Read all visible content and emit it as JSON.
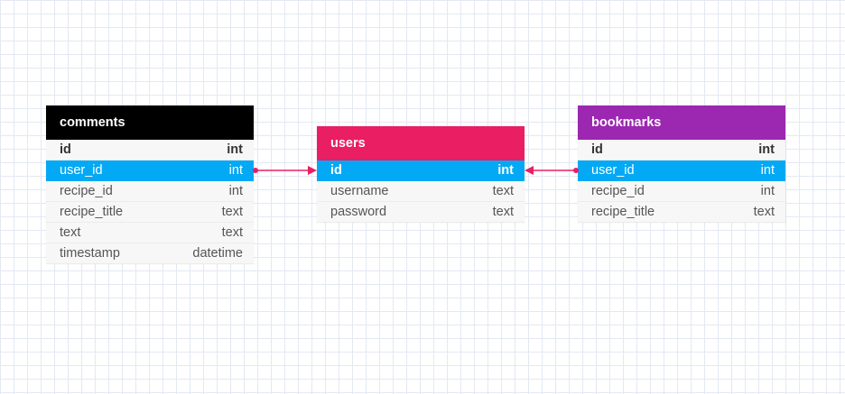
{
  "colors": {
    "comments_header": "#000000",
    "users_header": "#e91e63",
    "bookmarks_header": "#9c27b0",
    "highlight_row": "#03a9f4",
    "relation_line": "#e91e63"
  },
  "tables": {
    "comments": {
      "name": "comments",
      "rows": [
        {
          "field": "id",
          "type": "int"
        },
        {
          "field": "user_id",
          "type": "int"
        },
        {
          "field": "recipe_id",
          "type": "int"
        },
        {
          "field": "recipe_title",
          "type": "text"
        },
        {
          "field": "text",
          "type": "text"
        },
        {
          "field": "timestamp",
          "type": "datetime"
        }
      ]
    },
    "users": {
      "name": "users",
      "rows": [
        {
          "field": "id",
          "type": "int"
        },
        {
          "field": "username",
          "type": "text"
        },
        {
          "field": "password",
          "type": "text"
        }
      ]
    },
    "bookmarks": {
      "name": "bookmarks",
      "rows": [
        {
          "field": "id",
          "type": "int"
        },
        {
          "field": "user_id",
          "type": "int"
        },
        {
          "field": "recipe_id",
          "type": "int"
        },
        {
          "field": "recipe_title",
          "type": "text"
        }
      ]
    }
  }
}
